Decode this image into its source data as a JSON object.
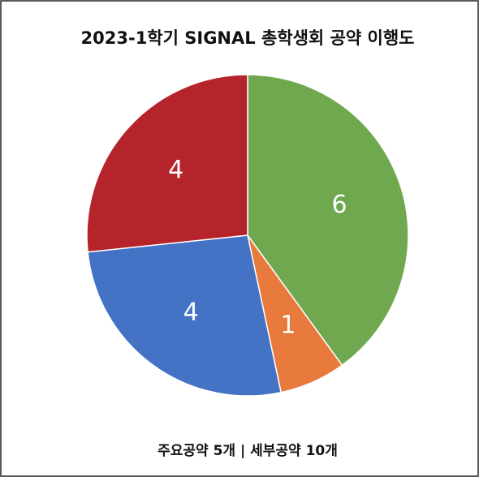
{
  "chart_data": {
    "type": "pie",
    "title": "2023-1학기 SIGNAL 총학생회 공약 이행도",
    "values": [
      6,
      1,
      4,
      4
    ],
    "colors": [
      "#70a84f",
      "#e87a3d",
      "#4472c4",
      "#b5242b"
    ],
    "footer": "주요공약 5개 | 세부공약 10개"
  }
}
